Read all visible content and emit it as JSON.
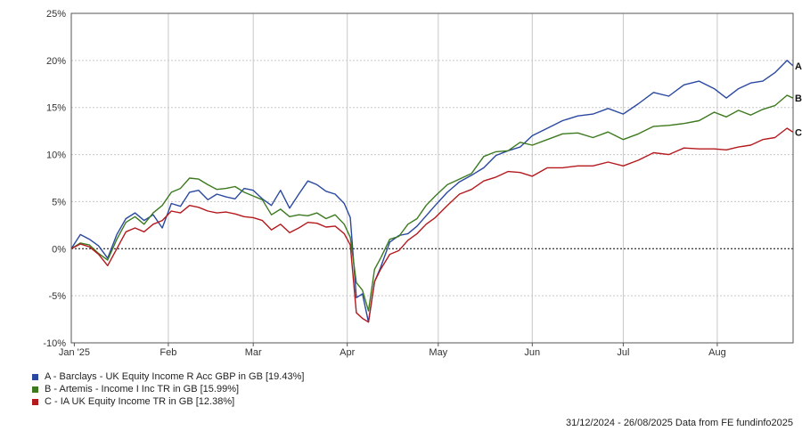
{
  "chart_data": {
    "type": "line",
    "ylim": [
      -10,
      25
    ],
    "yticks": [
      -10,
      -5,
      0,
      5,
      10,
      15,
      20,
      25
    ],
    "ytick_labels": [
      "-10%",
      "-5%",
      "0%",
      "5%",
      "10%",
      "15%",
      "20%",
      "25%"
    ],
    "xlim": [
      "2024-12-31",
      "2025-08-26"
    ],
    "xticks": [
      {
        "label": "Jan '25",
        "date": "2025-01-01"
      },
      {
        "label": "Feb",
        "date": "2025-02-01"
      },
      {
        "label": "Mar",
        "date": "2025-03-01"
      },
      {
        "label": "Apr",
        "date": "2025-04-01"
      },
      {
        "label": "May",
        "date": "2025-05-01"
      },
      {
        "label": "Jun",
        "date": "2025-06-01"
      },
      {
        "label": "Jul",
        "date": "2025-07-01"
      },
      {
        "label": "Aug",
        "date": "2025-08-01"
      }
    ],
    "grid": true,
    "zero_line": true,
    "legend_position": "bottom-left",
    "x": [
      "2024-12-31",
      "2025-01-03",
      "2025-01-06",
      "2025-01-09",
      "2025-01-12",
      "2025-01-15",
      "2025-01-18",
      "2025-01-21",
      "2025-01-24",
      "2025-01-27",
      "2025-01-30",
      "2025-02-02",
      "2025-02-05",
      "2025-02-08",
      "2025-02-11",
      "2025-02-14",
      "2025-02-17",
      "2025-02-20",
      "2025-02-23",
      "2025-02-26",
      "2025-03-01",
      "2025-03-04",
      "2025-03-07",
      "2025-03-10",
      "2025-03-13",
      "2025-03-16",
      "2025-03-19",
      "2025-03-22",
      "2025-03-25",
      "2025-03-28",
      "2025-03-31",
      "2025-04-02",
      "2025-04-04",
      "2025-04-06",
      "2025-04-08",
      "2025-04-10",
      "2025-04-12",
      "2025-04-15",
      "2025-04-18",
      "2025-04-21",
      "2025-04-24",
      "2025-04-27",
      "2025-04-30",
      "2025-05-04",
      "2025-05-08",
      "2025-05-12",
      "2025-05-16",
      "2025-05-20",
      "2025-05-24",
      "2025-05-28",
      "2025-06-01",
      "2025-06-06",
      "2025-06-11",
      "2025-06-16",
      "2025-06-21",
      "2025-06-26",
      "2025-07-01",
      "2025-07-06",
      "2025-07-11",
      "2025-07-16",
      "2025-07-21",
      "2025-07-26",
      "2025-07-31",
      "2025-08-04",
      "2025-08-08",
      "2025-08-12",
      "2025-08-16",
      "2025-08-20",
      "2025-08-24",
      "2025-08-26"
    ],
    "series": [
      {
        "name": "A - Barclays - UK Equity Income R Acc GBP in GB [19.43%]",
        "end_label": "A",
        "color": "#2a48a0",
        "values": [
          0,
          1.5,
          1.0,
          0.3,
          -1.0,
          1.5,
          3.2,
          3.8,
          3.0,
          3.6,
          2.2,
          4.8,
          4.5,
          6.0,
          6.2,
          5.2,
          5.8,
          5.5,
          5.3,
          6.4,
          6.2,
          5.3,
          4.6,
          6.2,
          4.3,
          5.8,
          7.2,
          6.8,
          6.1,
          5.8,
          4.8,
          3.3,
          -5.2,
          -4.8,
          -7.8,
          -3.5,
          -2.0,
          0.7,
          1.4,
          1.6,
          2.4,
          3.5,
          4.6,
          6.0,
          7.1,
          7.8,
          8.6,
          9.9,
          10.4,
          10.8,
          12.0,
          12.8,
          13.6,
          14.1,
          14.3,
          14.9,
          14.3,
          15.4,
          16.6,
          16.2,
          17.4,
          17.8,
          17.0,
          16.0,
          17.0,
          17.6,
          17.8,
          18.7,
          20.0,
          19.43
        ]
      },
      {
        "name": "B - Artemis - Income I Inc TR in GB [15.99%]",
        "end_label": "B",
        "color": "#3d7a1f",
        "values": [
          0,
          0.6,
          0.4,
          -0.5,
          -1.2,
          1.0,
          2.8,
          3.4,
          2.6,
          3.8,
          4.6,
          6.0,
          6.4,
          7.5,
          7.4,
          6.8,
          6.3,
          6.4,
          6.6,
          6.0,
          5.6,
          5.2,
          3.6,
          4.2,
          3.4,
          3.6,
          3.5,
          3.8,
          3.2,
          3.6,
          2.6,
          1.2,
          -3.6,
          -4.4,
          -6.6,
          -2.2,
          -1.0,
          1.0,
          1.3,
          2.6,
          3.2,
          4.6,
          5.6,
          6.8,
          7.4,
          8.0,
          9.8,
          10.3,
          10.4,
          11.3,
          11.0,
          11.6,
          12.2,
          12.3,
          11.8,
          12.4,
          11.6,
          12.2,
          13.0,
          13.1,
          13.3,
          13.6,
          14.5,
          14.0,
          14.7,
          14.2,
          14.8,
          15.2,
          16.3,
          15.99
        ]
      },
      {
        "name": "C - IA UK Equity Income TR in GB [12.38%]",
        "end_label": "C",
        "color": "#b4191d",
        "values": [
          0,
          0.5,
          0.2,
          -0.6,
          -1.8,
          0.0,
          1.8,
          2.2,
          1.8,
          2.6,
          3.0,
          4.0,
          3.8,
          4.6,
          4.4,
          4.0,
          3.8,
          3.9,
          3.7,
          3.4,
          3.3,
          3.0,
          2.0,
          2.6,
          1.7,
          2.2,
          2.8,
          2.7,
          2.3,
          2.4,
          1.6,
          0.4,
          -6.8,
          -7.4,
          -7.8,
          -3.5,
          -2.2,
          -0.6,
          -0.2,
          0.9,
          1.6,
          2.6,
          3.3,
          4.6,
          5.8,
          6.3,
          7.2,
          7.6,
          8.2,
          8.1,
          7.7,
          8.6,
          8.6,
          8.8,
          8.8,
          9.2,
          8.8,
          9.4,
          10.2,
          10.0,
          10.7,
          10.6,
          10.6,
          10.5,
          10.8,
          11.0,
          11.6,
          11.8,
          12.8,
          12.38
        ]
      }
    ],
    "footer": "31/12/2024 - 26/08/2025 Data from FE fundinfo2025"
  }
}
